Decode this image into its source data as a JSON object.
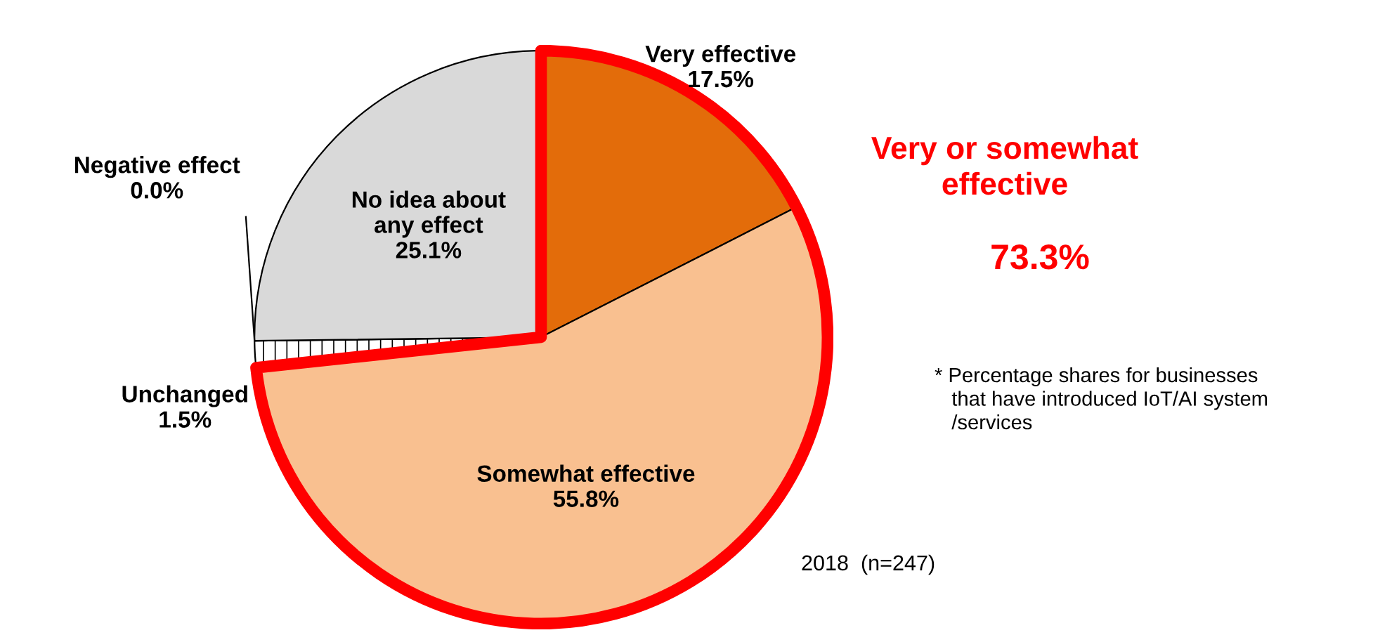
{
  "chart_data": {
    "type": "pie",
    "categories": [
      "Very effective",
      "Somewhat effective",
      "Unchanged",
      "Negative effect",
      "No idea about\nany effect"
    ],
    "values": [
      17.5,
      55.8,
      1.5,
      0.0,
      25.1
    ],
    "value_labels": [
      "17.5%",
      "55.8%",
      "1.5%",
      "0.0%",
      "25.1%"
    ],
    "colors": [
      "#e36c0a",
      "#f9c090",
      "#ffffff",
      "#ffffff",
      "#d9d9d9"
    ],
    "annotations": [
      "Very or somewhat\neffective",
      "73.3%",
      "* Percentage shares for businesses\n   that have introduced IoT/AI system\n   /services",
      "2018  (n=247)"
    ],
    "legend": false
  }
}
